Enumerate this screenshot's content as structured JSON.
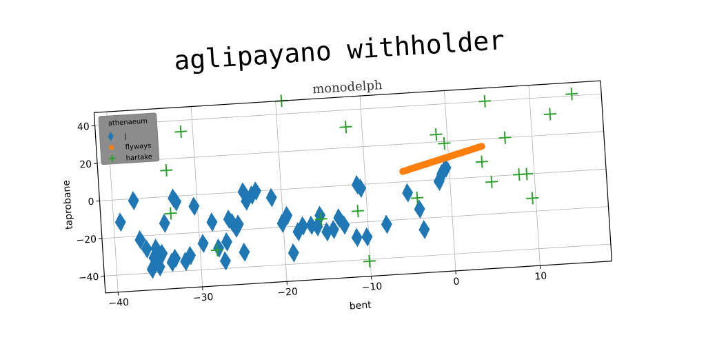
{
  "title": "aglipayano withholder",
  "chart_data": {
    "type": "scatter",
    "title": "monodelph",
    "xlabel": "bent",
    "ylabel": "taprobane",
    "xlim": [
      -41.5,
      18.5
    ],
    "ylim": [
      -49,
      47
    ],
    "xticks": [
      -40,
      -30,
      -20,
      -10,
      0,
      10
    ],
    "yticks": [
      -40,
      -20,
      0,
      20,
      40
    ],
    "xtick_labels": [
      "−40",
      "−30",
      "−20",
      "−10",
      "0",
      "10"
    ],
    "ytick_labels": [
      "−40",
      "−20",
      "0",
      "20",
      "40"
    ],
    "grid": true,
    "legend_title": "athenaeum",
    "legend_position": "top-left",
    "series": [
      {
        "name": "j",
        "marker": "diamond",
        "color": "#1f77b4",
        "x": [
          -39.2,
          -37.5,
          -37,
          -36.3,
          -35.8,
          -35.5,
          -35.2,
          -34.9,
          -34.5,
          -34,
          -33.4,
          -33,
          -32.8,
          -32.5,
          -31.8,
          -31.2,
          -30.4,
          -29.6,
          -28.4,
          -27.8,
          -27.1,
          -26.8,
          -26.4,
          -26,
          -25.6,
          -25.3,
          -24.8,
          -24.5,
          -24.2,
          -23.5,
          -23,
          -21.2,
          -20.1,
          -19.5,
          -19,
          -18.3,
          -17.7,
          -16.7,
          -16,
          -15.6,
          -14.9,
          -14.1,
          -13.4,
          -12.8,
          -11.4,
          -11,
          -10.6,
          -10.2,
          -7.8,
          -5.1,
          -3.8,
          -3.4,
          -1.3,
          -0.9,
          -0.4
        ],
        "y": [
          -12,
          -1,
          -22,
          -27,
          -38,
          -32,
          -27,
          -37,
          -30,
          -14,
          -35,
          -33,
          -1,
          -3,
          -35,
          -32,
          -6,
          -26,
          -15,
          -29,
          -36,
          -26,
          -14,
          -16,
          -19,
          -17,
          -32,
          0,
          -5,
          -2,
          0,
          -4,
          -18,
          -14,
          -34,
          -23,
          -20,
          -20,
          -21,
          -15,
          -24,
          -23,
          -17,
          -21,
          -28,
          0,
          -2,
          -28,
          -22,
          -6,
          -15,
          -26,
          -1,
          3,
          6
        ]
      },
      {
        "name": "flyways",
        "marker": "circle",
        "color": "#ff7f0e",
        "x": [
          -5.5,
          -5,
          -4.5,
          -4,
          -3.5,
          -3,
          -2.5,
          -2,
          -1.5,
          -1,
          -0.5,
          0,
          0.5,
          1,
          1.5,
          2,
          2.5,
          3,
          3.5,
          4
        ],
        "y": [
          5.5,
          6,
          6.7,
          7.2,
          7.8,
          8.3,
          8.9,
          9.5,
          10,
          10.6,
          11.2,
          11.7,
          12.3,
          12.9,
          13.4,
          14,
          14.5,
          15.1,
          15.7,
          16.2
        ]
      },
      {
        "name": "hartake",
        "marker": "plus",
        "color": "#2ca02c",
        "x": [
          -31.4,
          -33.4,
          -33.2,
          -19.3,
          -11.9,
          -28,
          -15.5,
          -11.1,
          -10.1,
          -4,
          -1.3,
          -0.4,
          3.9,
          4.7,
          4.9,
          6.8,
          8.2,
          9.1,
          9.6,
          12.3,
          15
        ],
        "y": [
          34,
          14,
          -9,
          47,
          31,
          -30,
          -17,
          -14,
          -41,
          -9,
          24,
          19,
          8,
          40,
          -3,
          20,
          0,
          0,
          -13,
          31,
          41
        ]
      }
    ]
  }
}
